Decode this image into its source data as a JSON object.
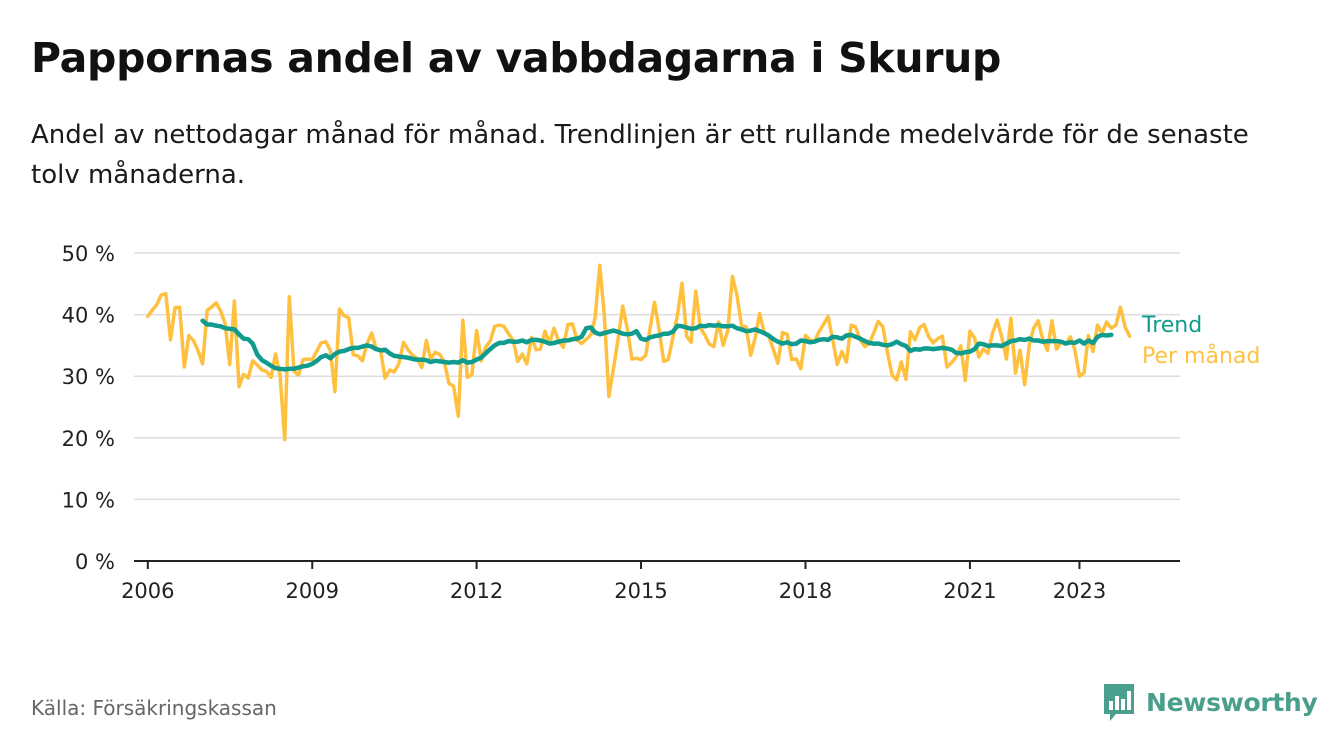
{
  "title": "Pappornas andel av vabbdagarna i Skurup",
  "subtitle": "Andel av nettodagar månad för månad. Trendlinjen är ett rullande medelvärde för de senaste tolv månaderna.",
  "source": "Källa: Försäkringskassan",
  "brand": {
    "name": "Newsworthy",
    "icon": "newsworthy-logo-icon",
    "color": "#4a9e8c"
  },
  "chart_data": {
    "type": "line",
    "ylim": [
      0,
      50
    ],
    "yticks": [
      0,
      10,
      20,
      30,
      40,
      50
    ],
    "ytick_labels": [
      "0 %",
      "10 %",
      "20 %",
      "30 %",
      "40 %",
      "50 %"
    ],
    "xlim": [
      "2005-10",
      "2024-11"
    ],
    "xticks": [
      "2006",
      "2009",
      "2012",
      "2015",
      "2018",
      "2021",
      "2023"
    ],
    "grid": true,
    "legend": "inline-right",
    "x_start": "2006-01",
    "series": [
      {
        "name": "Per månad",
        "color": "#ffc040",
        "values": [
          39.7,
          40.8,
          41.6,
          43.2,
          43.4,
          35.9,
          41.1,
          41.2,
          31.5,
          36.6,
          35.8,
          34.2,
          32.0,
          40.7,
          41.2,
          41.9,
          40.6,
          38.5,
          31.9,
          42.2,
          28.3,
          30.3,
          29.7,
          32.5,
          31.8,
          31.0,
          30.8,
          29.8,
          33.6,
          30.1,
          19.7,
          42.9,
          30.8,
          30.2,
          32.7,
          32.8,
          32.7,
          34.1,
          35.4,
          35.6,
          34.2,
          27.5,
          40.9,
          39.8,
          39.5,
          33.5,
          33.3,
          32.5,
          35.3,
          37.0,
          34.6,
          34.3,
          29.7,
          31.0,
          30.7,
          32.0,
          35.5,
          34.3,
          33.4,
          32.9,
          31.4,
          35.8,
          32.8,
          33.9,
          33.5,
          32.2,
          28.8,
          28.4,
          23.5,
          39.1,
          29.8,
          30.3,
          37.4,
          32.5,
          34.7,
          35.7,
          38.1,
          38.3,
          38.1,
          36.9,
          35.8,
          32.4,
          33.6,
          32.0,
          36.3,
          34.3,
          34.4,
          37.3,
          35.4,
          37.8,
          35.7,
          34.7,
          38.4,
          38.5,
          35.9,
          35.3,
          36.0,
          36.7,
          39.5,
          48.0,
          39.9,
          26.7,
          31.2,
          36.0,
          41.4,
          37.8,
          32.8,
          32.9,
          32.7,
          33.4,
          37.6,
          42.0,
          37.7,
          32.4,
          32.7,
          36.2,
          40.0,
          45.1,
          36.5,
          35.5,
          43.8,
          37.8,
          36.7,
          35.2,
          34.8,
          38.8,
          35.0,
          37.3,
          46.2,
          43.2,
          38.1,
          38.0,
          33.4,
          36.4,
          40.2,
          37.1,
          36.5,
          34.3,
          32.1,
          37.1,
          36.8,
          32.7,
          32.8,
          31.2,
          36.6,
          35.9,
          35.6,
          37.2,
          38.4,
          39.7,
          36.0,
          31.9,
          34.0,
          32.3,
          38.3,
          38.0,
          35.9,
          34.8,
          35.3,
          37.0,
          38.9,
          38.0,
          33.9,
          30.2,
          29.4,
          32.3,
          29.5,
          37.2,
          35.9,
          37.9,
          38.4,
          36.4,
          35.4,
          36.1,
          36.5,
          31.5,
          32.2,
          33.1,
          34.9,
          29.3,
          37.3,
          36.2,
          33.1,
          34.4,
          33.7,
          37.0,
          39.1,
          36.4,
          32.8,
          39.4,
          30.5,
          34.2,
          28.6,
          35.1,
          37.8,
          39.0,
          36.0,
          34.2,
          39.0,
          34.4,
          35.5,
          35.2,
          36.4,
          34.3,
          30.0,
          30.6,
          36.6,
          34.0,
          38.3,
          37.0,
          38.8,
          37.8,
          38.3,
          41.2,
          38.0,
          36.5
        ]
      },
      {
        "name": "Trend",
        "color": "#0f9b8e",
        "values": [
          null,
          null,
          null,
          null,
          null,
          null,
          null,
          null,
          null,
          null,
          null,
          null,
          39.0,
          38.4,
          38.4,
          38.2,
          38.1,
          37.8,
          37.7,
          37.6,
          36.8,
          36.1,
          36.0,
          35.3,
          33.5,
          32.6,
          32.2,
          31.7,
          31.3,
          31.2,
          31.1,
          31.2,
          31.2,
          31.4,
          31.6,
          31.7,
          32.0,
          32.5,
          33.1,
          33.4,
          32.9,
          33.6,
          34.0,
          34.1,
          34.4,
          34.6,
          34.6,
          34.8,
          35.0,
          34.8,
          34.4,
          34.2,
          34.3,
          33.7,
          33.3,
          33.2,
          33.1,
          33.0,
          32.8,
          32.7,
          32.7,
          32.6,
          32.3,
          32.5,
          32.4,
          32.3,
          32.2,
          32.3,
          32.2,
          32.6,
          32.2,
          32.3,
          32.7,
          33.0,
          33.7,
          34.4,
          35.0,
          35.4,
          35.4,
          35.7,
          35.6,
          35.6,
          35.8,
          35.5,
          35.9,
          35.9,
          35.8,
          35.6,
          35.3,
          35.4,
          35.6,
          35.8,
          35.8,
          36.0,
          36.1,
          36.4,
          37.8,
          37.9,
          37.1,
          36.8,
          37.0,
          37.2,
          37.4,
          37.2,
          36.9,
          36.8,
          36.9,
          37.3,
          36.1,
          35.9,
          36.3,
          36.5,
          36.6,
          36.9,
          36.9,
          37.2,
          38.2,
          38.1,
          37.9,
          37.7,
          37.8,
          38.2,
          38.1,
          38.3,
          38.2,
          38.3,
          38.1,
          38.1,
          38.2,
          37.8,
          37.6,
          37.3,
          37.4,
          37.6,
          37.3,
          37.0,
          36.6,
          36.0,
          35.6,
          35.3,
          35.5,
          35.2,
          35.3,
          35.8,
          35.7,
          35.5,
          35.6,
          35.9,
          36.0,
          35.9,
          36.4,
          36.3,
          36.1,
          36.6,
          36.7,
          36.4,
          36.1,
          35.7,
          35.4,
          35.3,
          35.3,
          35.1,
          35.0,
          35.2,
          35.6,
          35.2,
          34.9,
          34.1,
          34.4,
          34.3,
          34.5,
          34.5,
          34.4,
          34.5,
          34.6,
          34.5,
          34.3,
          33.8,
          33.7,
          33.9,
          34.0,
          34.4,
          35.3,
          35.2,
          34.9,
          35.0,
          35.0,
          34.9,
          35.3,
          35.7,
          35.8,
          36.0,
          35.9,
          36.1,
          35.8,
          35.8,
          35.6,
          35.7,
          35.7,
          35.7,
          35.6,
          35.3,
          35.5,
          35.4,
          35.8,
          35.3,
          35.8,
          35.4,
          36.4,
          36.7,
          36.6,
          36.7,
          null,
          null,
          null,
          null
        ]
      }
    ]
  }
}
